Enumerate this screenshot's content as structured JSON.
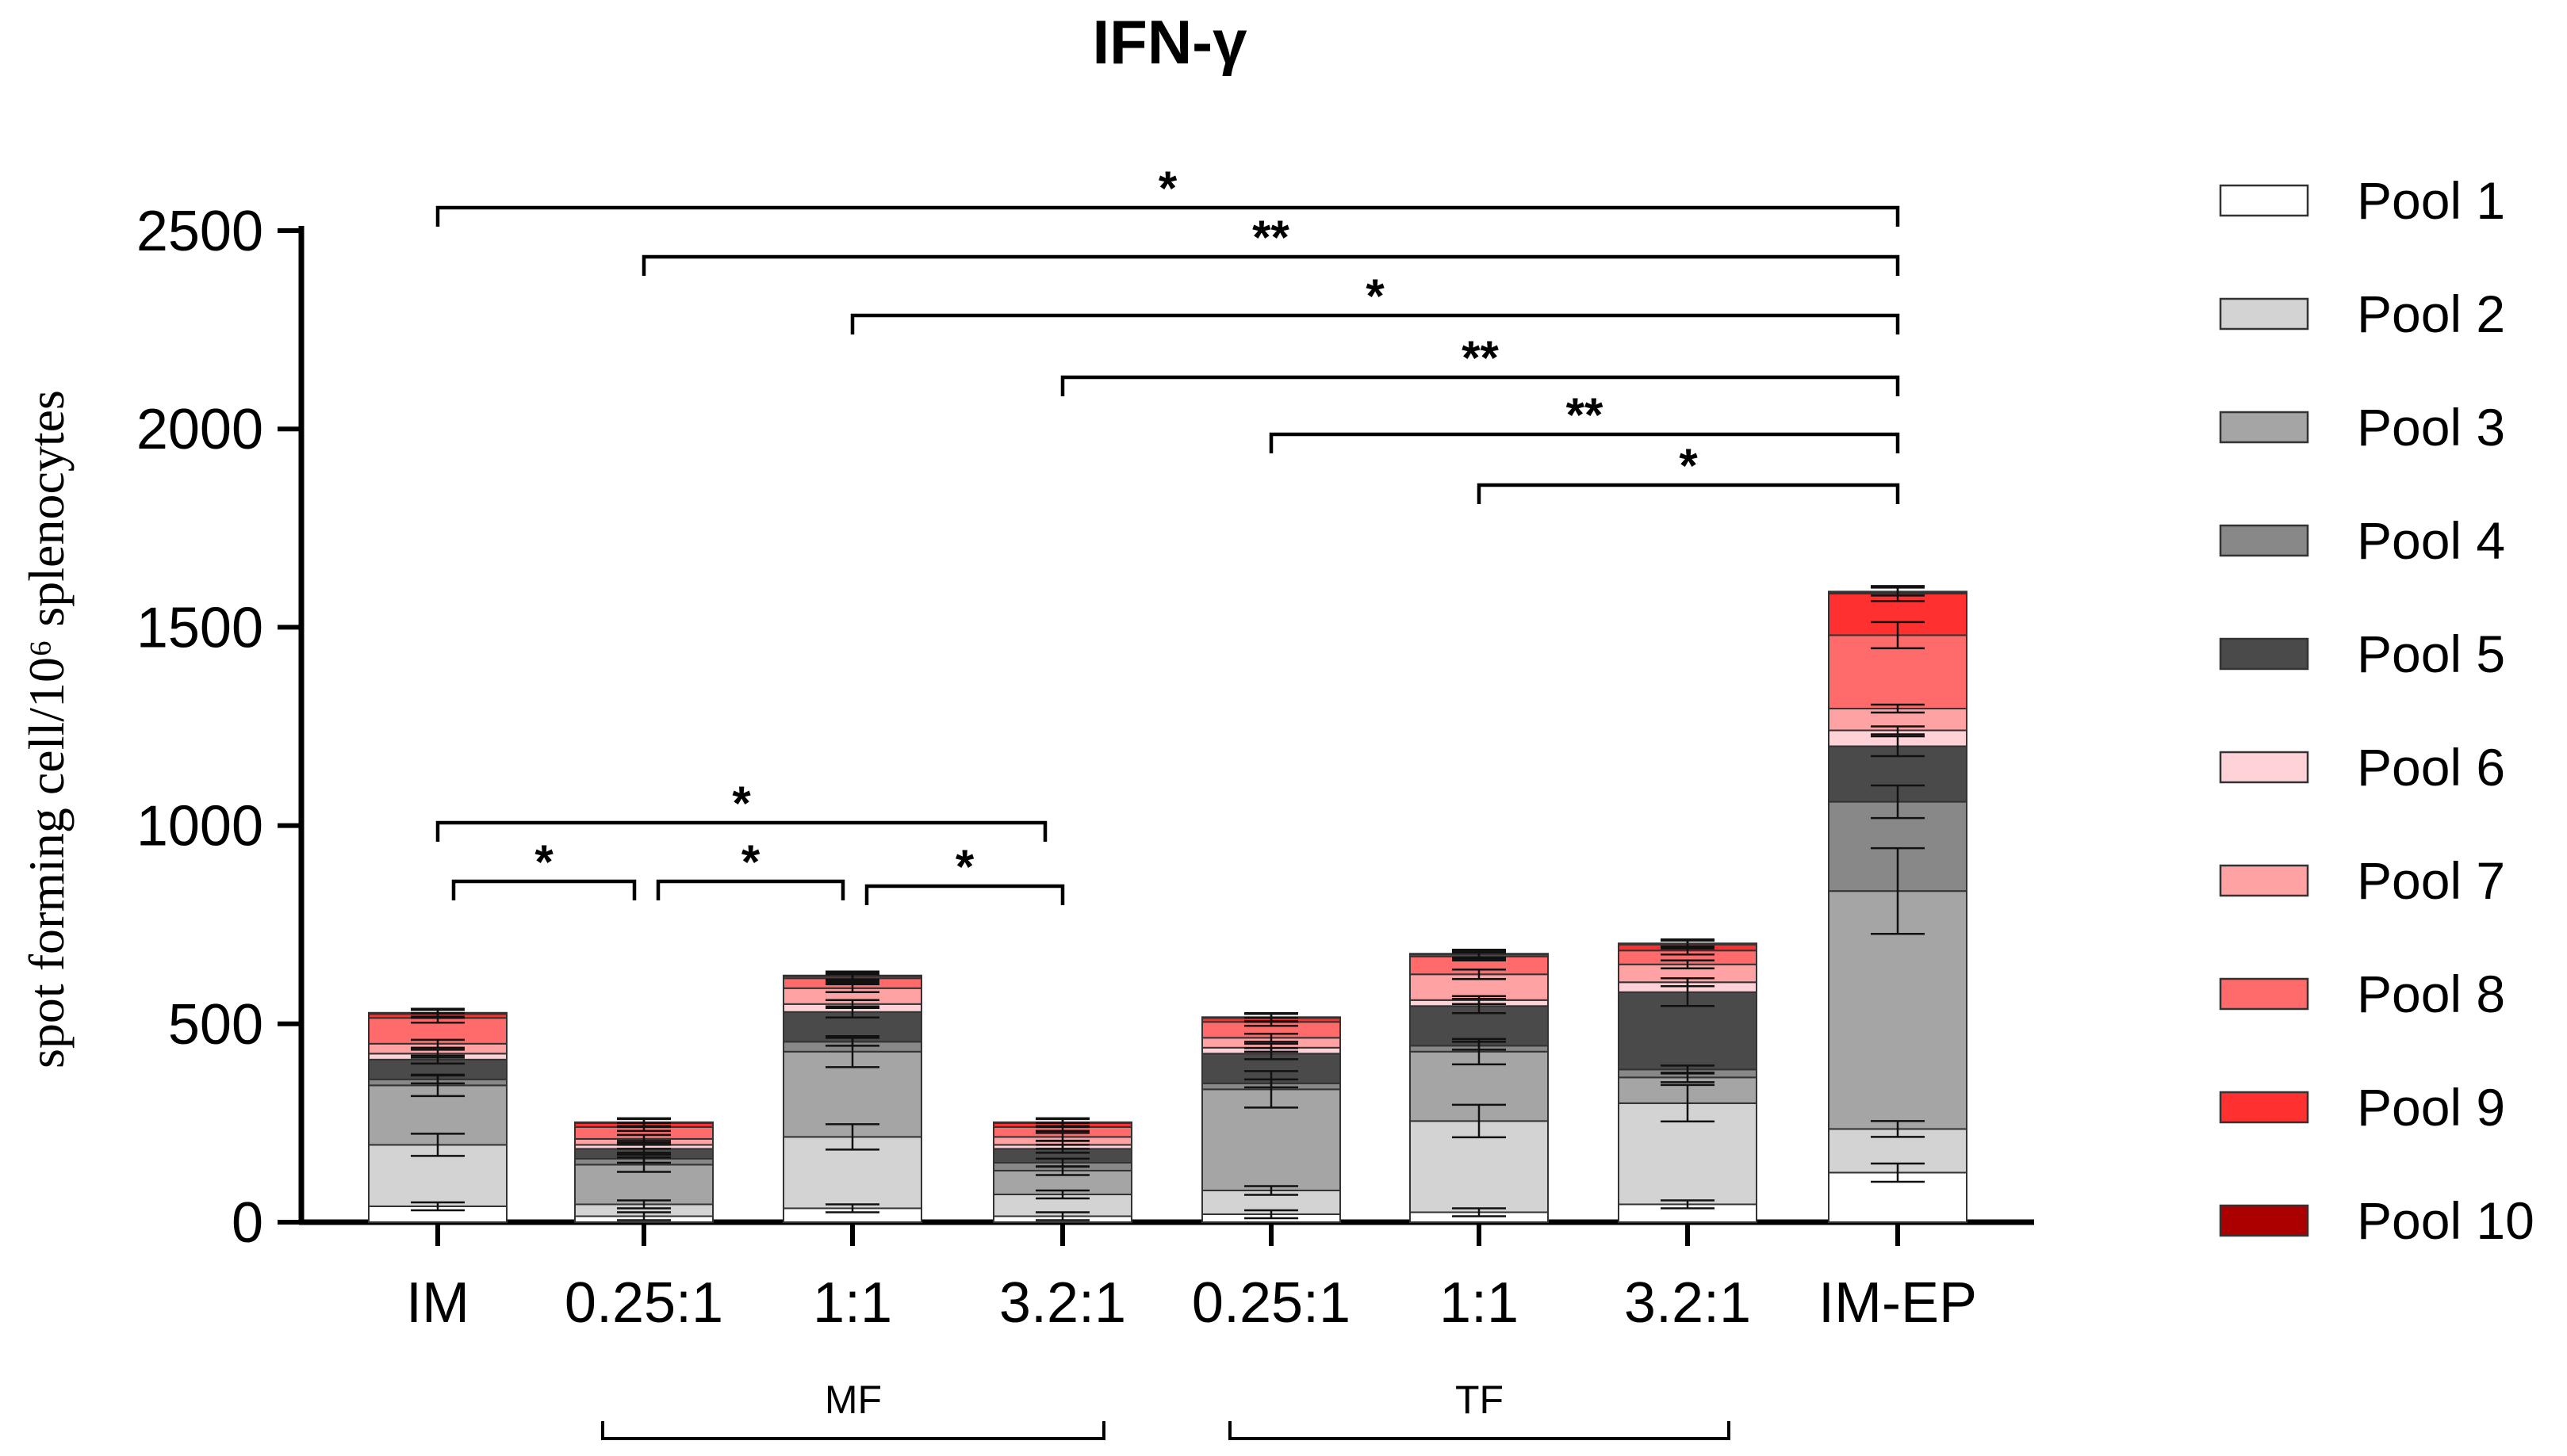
{
  "chart_data": {
    "type": "bar",
    "stacked": true,
    "title": "IFN-γ",
    "ylabel": "spot forming cell/10⁶ splenocytes",
    "xlabel": "",
    "ylim": [
      0,
      2500
    ],
    "yticks": [
      0,
      500,
      1000,
      1500,
      2000,
      2500
    ],
    "categories": [
      "IM",
      "0.25:1",
      "1:1",
      "3.2:1",
      "0.25:1",
      "1:1",
      "3.2:1",
      "IM-EP"
    ],
    "groups": [
      {
        "label": "MF",
        "from": 1,
        "to": 3
      },
      {
        "label": "TF",
        "from": 4,
        "to": 6
      }
    ],
    "series": [
      {
        "name": "Pool 1",
        "color": "#ffffff",
        "values": [
          40,
          15,
          35,
          15,
          20,
          25,
          45,
          125
        ]
      },
      {
        "name": "Pool 2",
        "color": "#d3d3d3",
        "values": [
          155,
          30,
          180,
          55,
          60,
          230,
          255,
          110
        ]
      },
      {
        "name": "Pool 3",
        "color": "#a5a5a5",
        "values": [
          150,
          100,
          215,
          60,
          255,
          175,
          65,
          600
        ]
      },
      {
        "name": "Pool 4",
        "color": "#888888",
        "values": [
          15,
          15,
          25,
          20,
          15,
          15,
          20,
          225
        ]
      },
      {
        "name": "Pool 5",
        "color": "#4a4a4a",
        "values": [
          50,
          25,
          75,
          35,
          75,
          100,
          195,
          140
        ]
      },
      {
        "name": "Pool 6",
        "color": "#ffd2d8",
        "values": [
          15,
          10,
          20,
          10,
          15,
          15,
          25,
          40
        ]
      },
      {
        "name": "Pool 7",
        "color": "#ffa2a4",
        "values": [
          25,
          15,
          40,
          20,
          25,
          65,
          45,
          55
        ]
      },
      {
        "name": "Pool 8",
        "color": "#ff6b6b",
        "values": [
          65,
          30,
          25,
          25,
          40,
          45,
          35,
          185
        ]
      },
      {
        "name": "Pool 9",
        "color": "#ff3030",
        "values": [
          10,
          10,
          5,
          10,
          10,
          5,
          15,
          105
        ]
      },
      {
        "name": "Pool 10",
        "color": "#aa0000",
        "values": [
          3,
          2,
          2,
          2,
          2,
          2,
          3,
          5
        ]
      }
    ],
    "significance_top": [
      {
        "from": 0,
        "to": 7,
        "label": "*"
      },
      {
        "from": 1,
        "to": 7,
        "label": "**"
      },
      {
        "from": 2,
        "to": 7,
        "label": "*"
      },
      {
        "from": 3,
        "to": 7,
        "label": "**"
      },
      {
        "from": 4,
        "to": 7,
        "label": "**"
      },
      {
        "from": 5,
        "to": 7,
        "label": "*"
      }
    ],
    "significance_low": [
      {
        "from": 0,
        "to": 3,
        "label": "*"
      },
      {
        "from": 0,
        "to": 1,
        "label": "*"
      },
      {
        "from": 1,
        "to": 2,
        "label": "*"
      },
      {
        "from": 2,
        "to": 3,
        "label": "*"
      }
    ],
    "legend_position": "right"
  }
}
